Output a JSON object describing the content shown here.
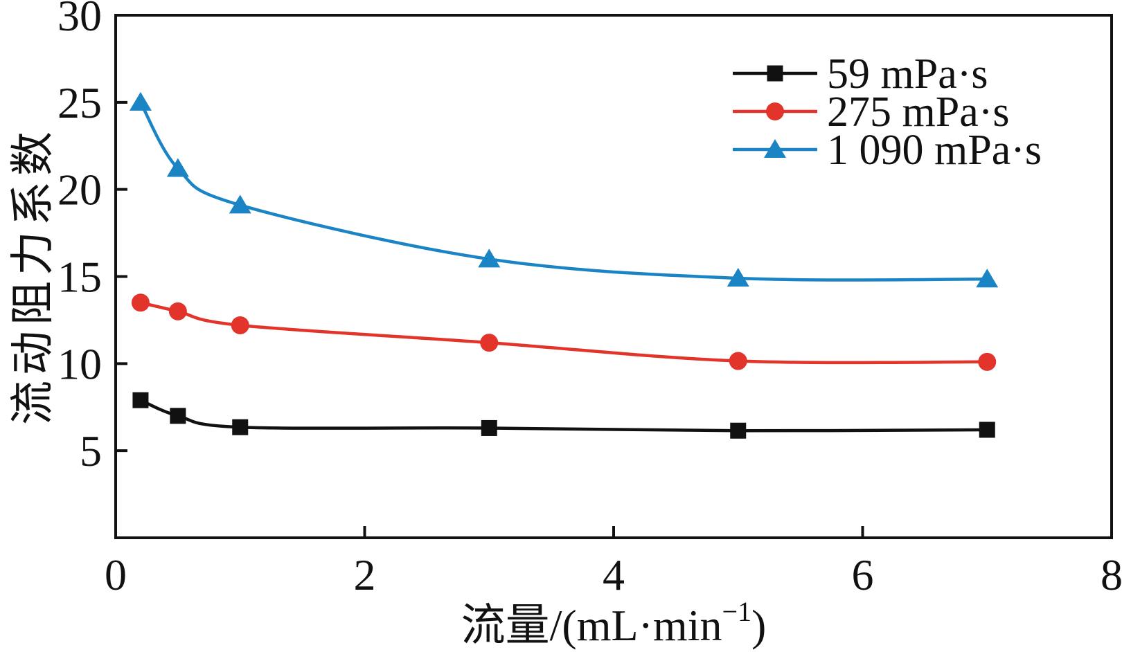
{
  "figure": {
    "background": "#ffffff",
    "xlabel_prefix": "流量/(mL·min",
    "xlabel_sup": "−1",
    "xlabel_suffix": ")"
  },
  "chart_data": {
    "type": "line",
    "title": "",
    "xlabel": "流量/(mL·min⁻¹)",
    "ylabel": "流动阻力系数",
    "xlim": [
      0,
      8
    ],
    "ylim": [
      0,
      30
    ],
    "xticks": [
      0,
      2,
      4,
      6,
      8
    ],
    "yticks": [
      5,
      10,
      15,
      20,
      25,
      30
    ],
    "grid": false,
    "legend_position": "upper right",
    "axis_color": "#111111",
    "x": [
      0.2,
      0.5,
      1,
      3,
      5,
      7
    ],
    "series": [
      {
        "name": "59 mPa·s",
        "color": "#111111",
        "marker": "square",
        "values": [
          7.9,
          7.0,
          6.35,
          6.3,
          6.15,
          6.2
        ]
      },
      {
        "name": "275 mPa·s",
        "color": "#e2342b",
        "marker": "circle",
        "values": [
          13.5,
          13.0,
          12.2,
          11.2,
          10.15,
          10.1
        ]
      },
      {
        "name": "1 090 mPa·s",
        "color": "#1b84c4",
        "marker": "triangle",
        "values": [
          25.0,
          21.2,
          19.1,
          16.0,
          14.9,
          14.85
        ]
      }
    ]
  }
}
